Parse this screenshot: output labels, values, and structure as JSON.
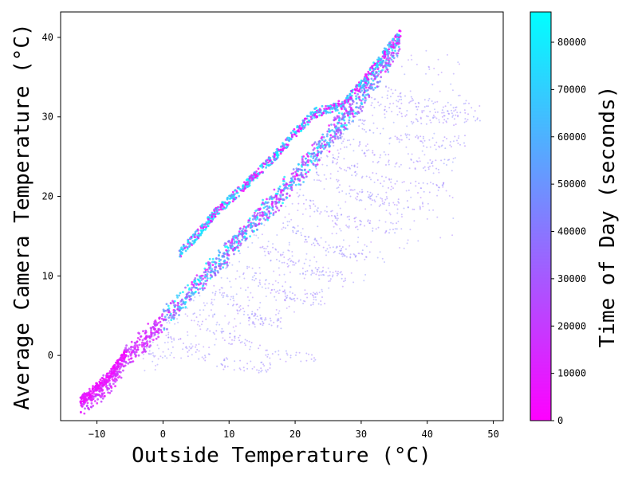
{
  "chart_data": {
    "type": "scatter",
    "title": "",
    "xlabel": "Outside Temperature (°C)",
    "ylabel": "Average Camera Temperature (°C)",
    "xlim": [
      -15.5,
      51.5
    ],
    "ylim": [
      -8.2,
      43.2
    ],
    "xticks": [
      "−10",
      "0",
      "10",
      "20",
      "30",
      "40",
      "50"
    ],
    "yticks": [
      "0",
      "10",
      "20",
      "30",
      "40"
    ],
    "grid": false,
    "colorbar": {
      "label": "Time of Day (seconds)",
      "range": [
        0,
        86400
      ],
      "ticks": [
        "0",
        "10000",
        "20000",
        "30000",
        "40000",
        "50000",
        "60000",
        "70000",
        "80000"
      ],
      "colormap": "cool",
      "color_low": "#ff00ff",
      "color_high": "#00ffff"
    },
    "trends": {
      "main_band": [
        [
          -12.5,
          -5.8
        ],
        [
          -8,
          -2.5
        ],
        [
          -6,
          0
        ],
        [
          -3,
          2.5
        ],
        [
          0,
          5
        ],
        [
          5,
          9.5
        ],
        [
          10,
          14
        ],
        [
          15,
          18.5
        ],
        [
          20,
          23
        ],
        [
          25,
          28
        ],
        [
          30,
          33
        ],
        [
          33,
          37
        ],
        [
          36,
          40.3
        ]
      ],
      "upper_band": [
        [
          2.5,
          12.8
        ],
        [
          5,
          15
        ],
        [
          8,
          18
        ],
        [
          12,
          21
        ],
        [
          15,
          23.5
        ],
        [
          18,
          26
        ],
        [
          20,
          28
        ],
        [
          23,
          30.5
        ],
        [
          27,
          31.5
        ],
        [
          30,
          34
        ],
        [
          33,
          37.5
        ],
        [
          36,
          40.5
        ]
      ],
      "afternoon_tails": [
        {
          "start": [
            8,
            8.5
          ],
          "end": [
            18,
            4
          ]
        },
        {
          "start": [
            12,
            11
          ],
          "end": [
            24,
            7
          ]
        },
        {
          "start": [
            15,
            14
          ],
          "end": [
            28,
            10
          ]
        },
        {
          "start": [
            18,
            17
          ],
          "end": [
            32,
            12.5
          ]
        },
        {
          "start": [
            20,
            20
          ],
          "end": [
            36,
            16
          ]
        },
        {
          "start": [
            23,
            23
          ],
          "end": [
            40,
            19
          ]
        },
        {
          "start": [
            25,
            25
          ],
          "end": [
            43,
            21
          ]
        },
        {
          "start": [
            27,
            27
          ],
          "end": [
            44,
            24
          ]
        },
        {
          "start": [
            29,
            29.5
          ],
          "end": [
            46,
            27
          ]
        },
        {
          "start": [
            31,
            32
          ],
          "end": [
            48,
            30
          ]
        },
        {
          "start": [
            33,
            33.5
          ],
          "end": [
            48,
            31.5
          ]
        },
        {
          "start": [
            4,
            5
          ],
          "end": [
            23,
            -0.5
          ]
        },
        {
          "start": [
            0,
            2.5
          ],
          "end": [
            16,
            -1.5
          ]
        }
      ]
    }
  }
}
